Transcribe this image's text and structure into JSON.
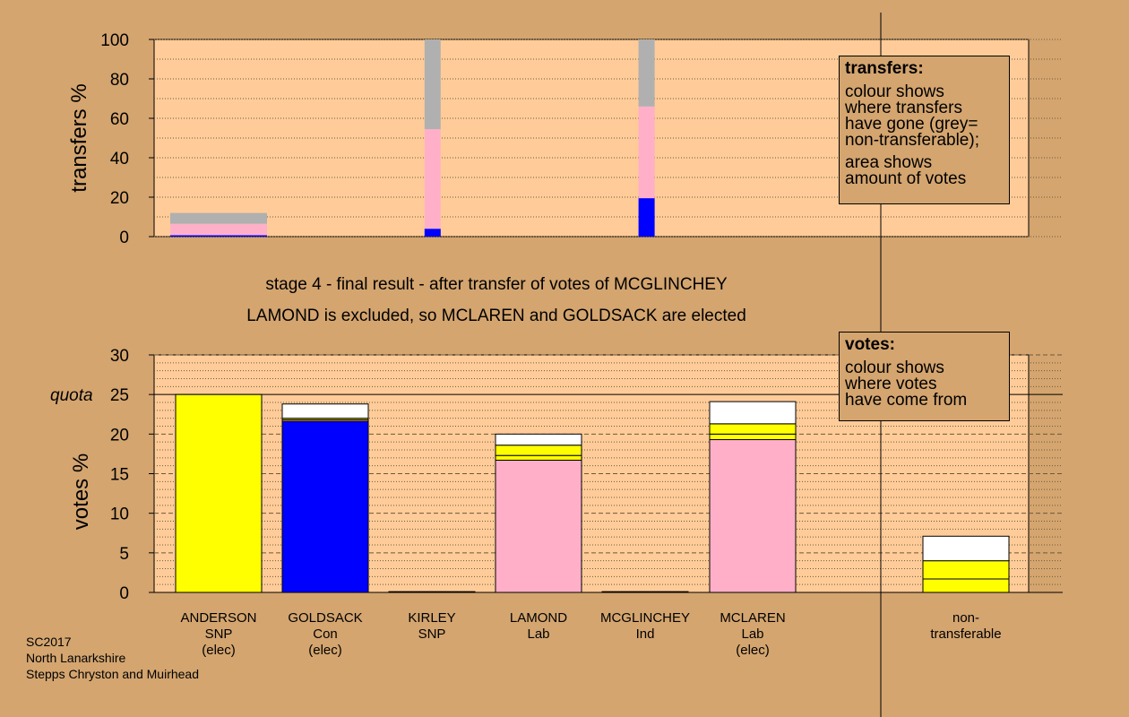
{
  "chart_data": [
    {
      "type": "bar",
      "ylabel": "transfers %",
      "ylim": [
        0,
        100
      ],
      "yticks": [
        0,
        20,
        40,
        60,
        80,
        100
      ],
      "grid": "dotted",
      "series_colors": {
        "blue": "#0000ff",
        "pink": "#ffb0c8",
        "grey": "#b0b0b0"
      },
      "bars": [
        {
          "slot": 0,
          "width": "wide",
          "segments": [
            {
              "color": "blue",
              "value": 0.7
            },
            {
              "color": "pink",
              "value": 5.8
            },
            {
              "color": "grey",
              "value": 5.5
            }
          ]
        },
        {
          "slot": 2,
          "width": "narrow",
          "segments": [
            {
              "color": "blue",
              "value": 4
            },
            {
              "color": "pink",
              "value": 50.5
            },
            {
              "color": "grey",
              "value": 45.5
            }
          ]
        },
        {
          "slot": 4,
          "width": "narrow",
          "segments": [
            {
              "color": "blue",
              "value": 19.5
            },
            {
              "color": "pink",
              "value": 46.5
            },
            {
              "color": "grey",
              "value": 34
            }
          ]
        }
      ]
    },
    {
      "type": "bar",
      "ylabel": "votes %",
      "ylim": [
        0,
        30
      ],
      "yticks": [
        0,
        5,
        10,
        15,
        20,
        25,
        30
      ],
      "quota": 25,
      "quota_label": "quota",
      "grid": "dashed",
      "series_colors": {
        "yellow": "#ffff00",
        "blue": "#0000ff",
        "pink": "#ffb0c8",
        "white": "#ffffff"
      },
      "categories": [
        {
          "name": "ANDERSON",
          "party": "SNP",
          "status": "(elec)",
          "segments": [
            {
              "color": "yellow",
              "value": 25
            }
          ]
        },
        {
          "name": "GOLDSACK",
          "party": "Con",
          "status": "(elec)",
          "segments": [
            {
              "color": "blue",
              "value": 21.6
            },
            {
              "color": "pink",
              "value": 0.2
            },
            {
              "color": "yellow",
              "value": 0.2
            },
            {
              "color": "white",
              "value": 1.8
            }
          ]
        },
        {
          "name": "KIRLEY",
          "party": "SNP",
          "status": "",
          "segments": [
            {
              "color": "yellow",
              "value": 0.1
            }
          ]
        },
        {
          "name": "LAMOND",
          "party": "Lab",
          "status": "",
          "segments": [
            {
              "color": "pink",
              "value": 16.7
            },
            {
              "color": "yellow",
              "value": 0.6
            },
            {
              "color": "yellow",
              "value": 1.3
            },
            {
              "color": "white",
              "value": 1.4
            }
          ]
        },
        {
          "name": "MCGLINCHEY",
          "party": "Ind",
          "status": "",
          "segments": [
            {
              "color": "yellow",
              "value": 0.1
            }
          ]
        },
        {
          "name": "MCLAREN",
          "party": "Lab",
          "status": "(elec)",
          "segments": [
            {
              "color": "pink",
              "value": 19.3
            },
            {
              "color": "yellow",
              "value": 0.7
            },
            {
              "color": "yellow",
              "value": 1.3
            },
            {
              "color": "white",
              "value": 2.8
            }
          ]
        },
        {
          "name": "non-",
          "party": "transferable",
          "status": "",
          "segments": [
            {
              "color": "yellow",
              "value": 1.7
            },
            {
              "color": "yellow",
              "value": 2.3
            },
            {
              "color": "white",
              "value": 3.1
            }
          ]
        }
      ]
    }
  ],
  "captions": {
    "stage": "stage 4 - final result - after transfer of votes of MCGLINCHEY",
    "result": "LAMOND is excluded, so MCLAREN and GOLDSACK are elected"
  },
  "legend_transfers": {
    "title": "transfers:",
    "line1": "colour shows",
    "line2": "where transfers",
    "line3": "have gone (grey=",
    "line4": "non-transferable);",
    "line5": "area shows",
    "line6": "amount of votes"
  },
  "legend_votes": {
    "title": "votes:",
    "line1": "colour shows",
    "line2": "where votes",
    "line3": "have come from"
  },
  "footer": {
    "line1": "SC2017",
    "line2": "North Lanarkshire",
    "line3": "Stepps Chryston and Muirhead"
  }
}
